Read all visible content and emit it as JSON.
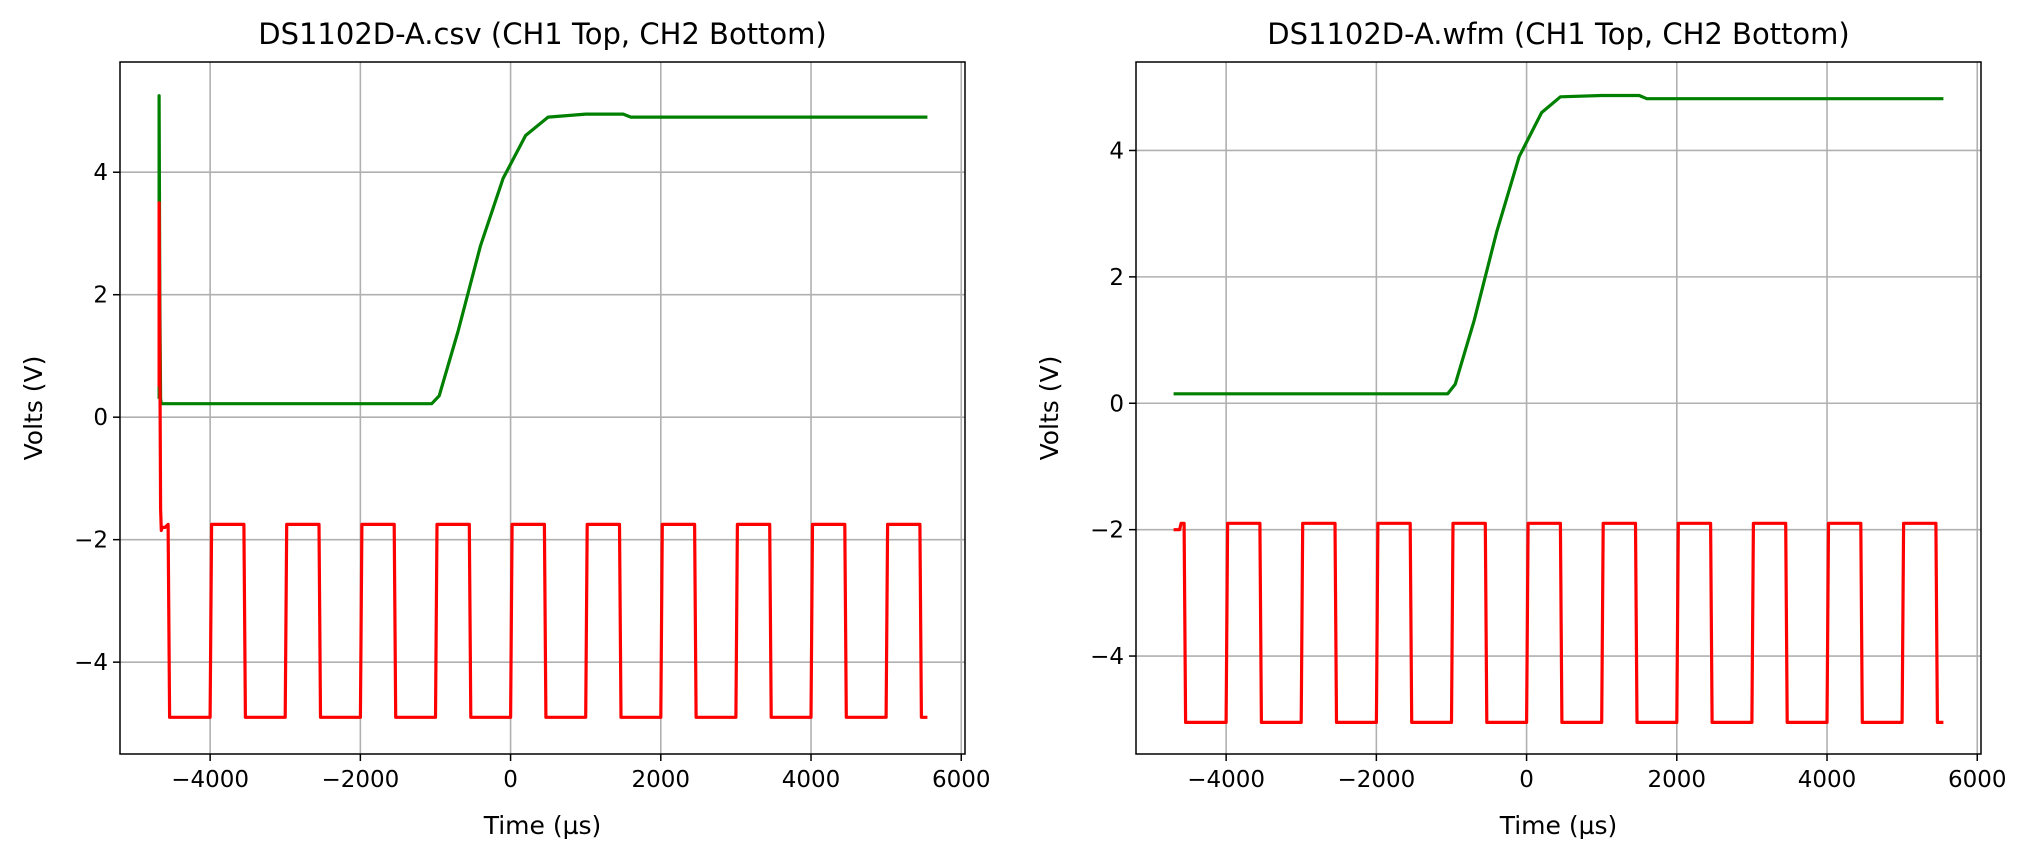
{
  "chart_data": [
    {
      "type": "line",
      "title": "DS1102D-A.csv (CH1 Top, CH2 Bottom)",
      "xlabel": "Time (µs)",
      "ylabel": "Volts (V)",
      "xlim": [
        -5200,
        6050
      ],
      "ylim": [
        -5.5,
        5.8
      ],
      "xticks": [
        -4000,
        -2000,
        0,
        2000,
        4000,
        6000
      ],
      "yticks": [
        -4,
        -2,
        0,
        2,
        4
      ],
      "xtick_labels": [
        "−4000",
        "−2000",
        "0",
        "2000",
        "4000",
        "6000"
      ],
      "ytick_labels": [
        "−4",
        "−2",
        "0",
        "2",
        "4"
      ],
      "grid": true,
      "series": [
        {
          "color": "#008000",
          "x": [
            -4680,
            -4680,
            -4670,
            -4660,
            -4650,
            -4600,
            -1050,
            -950,
            -700,
            -400,
            -100,
            200,
            500,
            1000,
            1500,
            1600,
            5550
          ],
          "y": [
            0.3,
            5.25,
            2.0,
            0.3,
            0.22,
            0.22,
            0.22,
            0.35,
            1.4,
            2.8,
            3.9,
            4.6,
            4.9,
            4.95,
            4.95,
            4.9,
            4.9
          ]
        },
        {
          "color": "#ff0000",
          "x": [
            -4680,
            -4680,
            -4660,
            -4650,
            -4640,
            -4600,
            -4560,
            -4540,
            -4000,
            -3980,
            -3550,
            -3530,
            -3000,
            -2980,
            -2550,
            -2530,
            -2000,
            -1980,
            -1550,
            -1530,
            -1000,
            -980,
            -550,
            -530,
            0,
            20,
            450,
            470,
            1000,
            1020,
            1450,
            1470,
            2000,
            2020,
            2450,
            2470,
            3000,
            3020,
            3450,
            3470,
            4000,
            4020,
            4450,
            4470,
            5000,
            5020,
            5450,
            5470,
            5550
          ],
          "y": [
            0.5,
            3.5,
            -1.5,
            -1.85,
            -1.8,
            -1.8,
            -1.75,
            -4.9,
            -4.9,
            -1.75,
            -1.75,
            -4.9,
            -4.9,
            -1.75,
            -1.75,
            -4.9,
            -4.9,
            -1.75,
            -1.75,
            -4.9,
            -4.9,
            -1.75,
            -1.75,
            -4.9,
            -4.9,
            -1.75,
            -1.75,
            -4.9,
            -4.9,
            -1.75,
            -1.75,
            -4.9,
            -4.9,
            -1.75,
            -1.75,
            -4.9,
            -4.9,
            -1.75,
            -1.75,
            -4.9,
            -4.9,
            -1.75,
            -1.75,
            -4.9,
            -4.9,
            -1.75,
            -1.75,
            -4.9,
            -4.9
          ]
        }
      ]
    },
    {
      "type": "line",
      "title": "DS1102D-A.wfm (CH1 Top, CH2 Bottom)",
      "xlabel": "Time (µs)",
      "ylabel": "Volts (V)",
      "xlim": [
        -5200,
        6050
      ],
      "ylim": [
        -5.55,
        5.4
      ],
      "xticks": [
        -4000,
        -2000,
        0,
        2000,
        4000,
        6000
      ],
      "yticks": [
        -4,
        -2,
        0,
        2,
        4
      ],
      "xtick_labels": [
        "−4000",
        "−2000",
        "0",
        "2000",
        "4000",
        "6000"
      ],
      "ytick_labels": [
        "−4",
        "−2",
        "0",
        "2",
        "4"
      ],
      "grid": true,
      "series": [
        {
          "color": "#008000",
          "x": [
            -4700,
            -1050,
            -950,
            -700,
            -400,
            -100,
            200,
            450,
            1000,
            1500,
            1600,
            5550
          ],
          "y": [
            0.15,
            0.15,
            0.3,
            1.3,
            2.7,
            3.9,
            4.6,
            4.85,
            4.87,
            4.87,
            4.82,
            4.82
          ]
        },
        {
          "color": "#ff0000",
          "x": [
            -4700,
            -4620,
            -4600,
            -4560,
            -4540,
            -4000,
            -3980,
            -3550,
            -3530,
            -3000,
            -2980,
            -2550,
            -2530,
            -2000,
            -1980,
            -1550,
            -1530,
            -1000,
            -980,
            -550,
            -530,
            0,
            20,
            450,
            470,
            1000,
            1020,
            1450,
            1470,
            2000,
            2020,
            2450,
            2470,
            3000,
            3020,
            3450,
            3470,
            4000,
            4020,
            4450,
            4470,
            5000,
            5020,
            5450,
            5470,
            5550
          ],
          "y": [
            -2.0,
            -2.0,
            -1.9,
            -1.9,
            -5.05,
            -5.05,
            -1.9,
            -1.9,
            -5.05,
            -5.05,
            -1.9,
            -1.9,
            -5.05,
            -5.05,
            -1.9,
            -1.9,
            -5.05,
            -5.05,
            -1.9,
            -1.9,
            -5.05,
            -5.05,
            -1.9,
            -1.9,
            -5.05,
            -5.05,
            -1.9,
            -1.9,
            -5.05,
            -5.05,
            -1.9,
            -1.9,
            -5.05,
            -5.05,
            -1.9,
            -1.9,
            -5.05,
            -5.05,
            -1.9,
            -1.9,
            -5.05,
            -5.05,
            -1.9,
            -1.9,
            -5.05,
            -5.05
          ]
        }
      ]
    }
  ]
}
